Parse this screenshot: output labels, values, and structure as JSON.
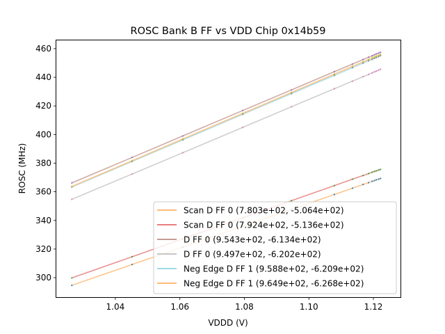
{
  "chart_data": {
    "type": "line",
    "title": "ROSC Bank B FF vs VDD Chip 0x14b59",
    "xlabel": "VDDD (V)",
    "ylabel": "ROSC (MHz)",
    "xlim": [
      1.0217,
      1.1284
    ],
    "ylim": [
      286.4,
      465.8
    ],
    "xticks": [
      1.04,
      1.06,
      1.08,
      1.1,
      1.12
    ],
    "xtick_labels": [
      "1.04",
      "1.06",
      "1.08",
      "1.10",
      "1.12"
    ],
    "yticks": [
      300,
      320,
      340,
      360,
      380,
      400,
      420,
      440,
      460
    ],
    "ytick_labels": [
      "300",
      "320",
      "340",
      "360",
      "380",
      "400",
      "420",
      "440",
      "460"
    ],
    "grid": false,
    "legend_position": "lower-right",
    "x": [
      1.0265,
      1.0452,
      1.0609,
      1.0795,
      1.0946,
      1.1079,
      1.1135,
      1.1168,
      1.1185,
      1.1196,
      1.1203,
      1.1209,
      1.1216,
      1.1222
    ],
    "series": [
      {
        "name": "Scan D FF 0 (7.803e+02, -5.064e+02)",
        "color": "#ffbb78",
        "marker_color": "#1f77b4",
        "slope": 780.3,
        "intercept": -506.4,
        "values": [
          294.6,
          309.2,
          321.4,
          335.9,
          347.7,
          358.1,
          362.5,
          365.1,
          366.4,
          367.3,
          367.8,
          368.3,
          368.8,
          369.3
        ]
      },
      {
        "name": "Scan D FF 0 (7.924e+02, -5.136e+02)",
        "color": "#e87f7f",
        "marker_color": "#2ca02c",
        "slope": 792.4,
        "intercept": -513.6,
        "values": [
          299.8,
          314.6,
          327.1,
          341.8,
          353.8,
          364.3,
          368.8,
          371.4,
          372.7,
          373.6,
          374.2,
          374.6,
          375.2,
          375.6
        ]
      },
      {
        "name": "D FF 0 (9.543e+02, -6.134e+02)",
        "color": "#c49c94",
        "marker_color": "#9467bd",
        "slope": 954.3,
        "intercept": -613.4,
        "values": [
          366.2,
          384.0,
          399.0,
          416.8,
          431.2,
          443.9,
          449.2,
          452.4,
          454.0,
          455.0,
          455.7,
          456.3,
          456.9,
          457.5
        ]
      },
      {
        "name": "D FF 0 (9.497e+02, -6.202e+02)",
        "color": "#c7c7c7",
        "marker_color": "#e377c2",
        "slope": 949.7,
        "intercept": -620.2,
        "values": [
          354.7,
          372.4,
          387.3,
          405.0,
          419.4,
          432.0,
          437.3,
          440.4,
          442.0,
          443.1,
          443.8,
          444.3,
          445.0,
          445.6
        ]
      },
      {
        "name": "Neg Edge D FF 1 (9.588e+02, -6.209e+02)",
        "color": "#9edae5",
        "marker_color": "#7f7f7f",
        "slope": 958.8,
        "intercept": -620.9,
        "values": [
          363.3,
          381.2,
          396.3,
          414.1,
          428.6,
          441.3,
          446.7,
          449.9,
          451.5,
          452.5,
          453.2,
          453.8,
          454.4,
          455.1
        ]
      },
      {
        "name": "Neg Edge D FF 1 (9.649e+02, -6.268e+02)",
        "color": "#ffbb78",
        "marker_color": "#bcbd22",
        "slope": 964.9,
        "intercept": -626.8,
        "values": [
          363.7,
          381.7,
          396.9,
          414.8,
          429.4,
          442.2,
          447.6,
          450.8,
          452.4,
          453.5,
          454.2,
          454.7,
          455.4,
          456.0
        ]
      }
    ]
  }
}
